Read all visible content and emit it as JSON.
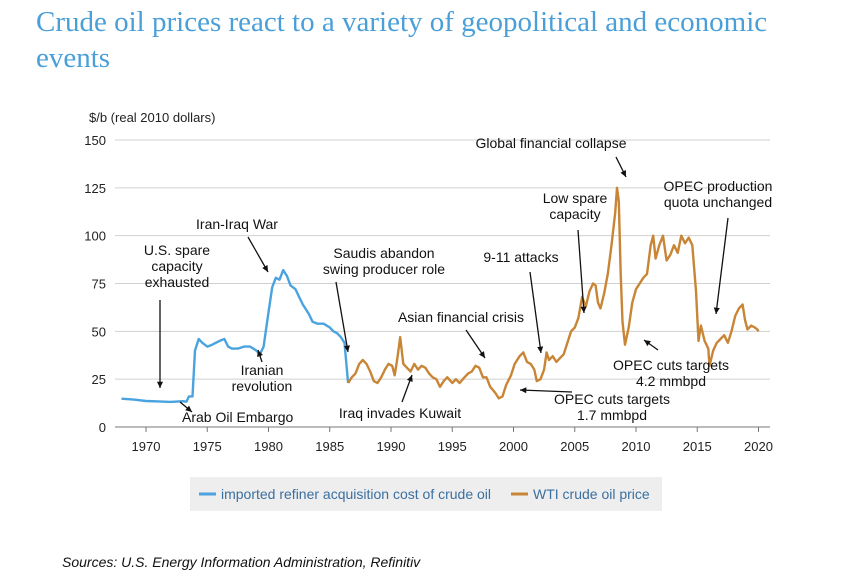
{
  "slide": {
    "title": "Crude oil prices react to a variety of geopolitical and economic events",
    "source": "Sources: U.S. Energy Information Administration, Refinitiv"
  },
  "chart_data": {
    "type": "line",
    "ylabel": "$/b (real 2010 dollars)",
    "xlim": [
      1967.5,
      2021
    ],
    "ylim": [
      0,
      150
    ],
    "x_ticks": [
      "1970",
      "1975",
      "1980",
      "1985",
      "1990",
      "1995",
      "2000",
      "2005",
      "2010",
      "2015",
      "2020"
    ],
    "y_ticks": [
      "0",
      "25",
      "50",
      "75",
      "100",
      "125",
      "150"
    ],
    "grid": true,
    "legend_position": "bottom",
    "colors": {
      "imported": "#4aa3df",
      "wti": "#c98536"
    },
    "series": [
      {
        "name": "imported refiner acquisition cost of crude oil",
        "color": "#4aa3df",
        "points": [
          [
            1968,
            14.8
          ],
          [
            1969,
            14.3
          ],
          [
            1970,
            13.6
          ],
          [
            1971,
            13.4
          ],
          [
            1972,
            13.1
          ],
          [
            1973,
            13.5
          ],
          [
            1973.3,
            13.2
          ],
          [
            1973.5,
            16
          ],
          [
            1973.8,
            16
          ],
          [
            1974,
            40
          ],
          [
            1974.3,
            46
          ],
          [
            1974.6,
            44
          ],
          [
            1975,
            42
          ],
          [
            1975.4,
            43
          ],
          [
            1975.7,
            44
          ],
          [
            1976,
            45
          ],
          [
            1976.4,
            46
          ],
          [
            1976.7,
            42
          ],
          [
            1977,
            41
          ],
          [
            1977.5,
            41
          ],
          [
            1978,
            42
          ],
          [
            1978.5,
            42
          ],
          [
            1979,
            40
          ],
          [
            1979.3,
            38
          ],
          [
            1979.6,
            42
          ],
          [
            1980,
            60
          ],
          [
            1980.3,
            73
          ],
          [
            1980.6,
            78
          ],
          [
            1980.9,
            77
          ],
          [
            1981.2,
            82
          ],
          [
            1981.5,
            79
          ],
          [
            1981.8,
            74
          ],
          [
            1982.2,
            72
          ],
          [
            1982.5,
            68
          ],
          [
            1982.8,
            64
          ],
          [
            1983,
            62
          ],
          [
            1983.3,
            59
          ],
          [
            1983.6,
            55
          ],
          [
            1984,
            54
          ],
          [
            1984.5,
            54
          ],
          [
            1985,
            52
          ],
          [
            1985.3,
            50
          ],
          [
            1985.6,
            49
          ],
          [
            1985.9,
            47
          ],
          [
            1986.2,
            44
          ],
          [
            1986.5,
            23
          ]
        ]
      },
      {
        "name": "WTI crude oil price",
        "color": "#c98536",
        "points": [
          [
            1986.5,
            23
          ],
          [
            1986.8,
            26
          ],
          [
            1987.1,
            28
          ],
          [
            1987.4,
            33
          ],
          [
            1987.7,
            35
          ],
          [
            1988,
            33
          ],
          [
            1988.3,
            29
          ],
          [
            1988.6,
            24
          ],
          [
            1988.9,
            23
          ],
          [
            1989.2,
            26
          ],
          [
            1989.5,
            30
          ],
          [
            1989.8,
            33
          ],
          [
            1990.1,
            32
          ],
          [
            1990.3,
            27
          ],
          [
            1990.5,
            35
          ],
          [
            1990.75,
            47
          ],
          [
            1991,
            33
          ],
          [
            1991.3,
            31
          ],
          [
            1991.6,
            29
          ],
          [
            1991.9,
            33
          ],
          [
            1992.2,
            30
          ],
          [
            1992.5,
            32
          ],
          [
            1992.8,
            31
          ],
          [
            1993.1,
            28
          ],
          [
            1993.4,
            26
          ],
          [
            1993.7,
            25
          ],
          [
            1994,
            21
          ],
          [
            1994.3,
            24
          ],
          [
            1994.6,
            26
          ],
          [
            1995,
            23
          ],
          [
            1995.3,
            25
          ],
          [
            1995.6,
            23
          ],
          [
            1996,
            26
          ],
          [
            1996.3,
            28
          ],
          [
            1996.6,
            29
          ],
          [
            1996.9,
            32
          ],
          [
            1997.2,
            31
          ],
          [
            1997.5,
            26
          ],
          [
            1997.8,
            26
          ],
          [
            1998.1,
            21
          ],
          [
            1998.5,
            18
          ],
          [
            1998.8,
            15
          ],
          [
            1999.1,
            16
          ],
          [
            1999.4,
            22
          ],
          [
            1999.8,
            27
          ],
          [
            2000.1,
            33
          ],
          [
            2000.5,
            37
          ],
          [
            2000.8,
            39
          ],
          [
            2001.1,
            34
          ],
          [
            2001.4,
            33
          ],
          [
            2001.7,
            30
          ],
          [
            2001.9,
            24
          ],
          [
            2002.2,
            25
          ],
          [
            2002.5,
            30
          ],
          [
            2002.7,
            39
          ],
          [
            2002.9,
            35
          ],
          [
            2003.2,
            37
          ],
          [
            2003.5,
            34
          ],
          [
            2003.8,
            36
          ],
          [
            2004.1,
            38
          ],
          [
            2004.4,
            44
          ],
          [
            2004.7,
            50
          ],
          [
            2005,
            52
          ],
          [
            2005.3,
            57
          ],
          [
            2005.6,
            68
          ],
          [
            2005.9,
            63
          ],
          [
            2006.2,
            71
          ],
          [
            2006.5,
            75
          ],
          [
            2006.7,
            74
          ],
          [
            2006.9,
            65
          ],
          [
            2007.1,
            62
          ],
          [
            2007.4,
            70
          ],
          [
            2007.7,
            80
          ],
          [
            2008,
            95
          ],
          [
            2008.3,
            112
          ],
          [
            2008.45,
            125
          ],
          [
            2008.6,
            118
          ],
          [
            2008.75,
            80
          ],
          [
            2008.9,
            55
          ],
          [
            2009.1,
            43
          ],
          [
            2009.4,
            52
          ],
          [
            2009.7,
            65
          ],
          [
            2010,
            72
          ],
          [
            2010.3,
            75
          ],
          [
            2010.6,
            78
          ],
          [
            2010.9,
            80
          ],
          [
            2011.2,
            95
          ],
          [
            2011.4,
            100
          ],
          [
            2011.6,
            88
          ],
          [
            2011.9,
            95
          ],
          [
            2012.2,
            100
          ],
          [
            2012.5,
            87
          ],
          [
            2012.8,
            90
          ],
          [
            2013.1,
            95
          ],
          [
            2013.4,
            91
          ],
          [
            2013.7,
            100
          ],
          [
            2014,
            96
          ],
          [
            2014.3,
            99
          ],
          [
            2014.6,
            95
          ],
          [
            2014.9,
            71
          ],
          [
            2015.1,
            45
          ],
          [
            2015.3,
            53
          ],
          [
            2015.6,
            45
          ],
          [
            2015.9,
            41
          ],
          [
            2016,
            32
          ],
          [
            2016.3,
            40
          ],
          [
            2016.6,
            44
          ],
          [
            2016.9,
            46
          ],
          [
            2017.2,
            48
          ],
          [
            2017.5,
            44
          ],
          [
            2017.8,
            50
          ],
          [
            2018.1,
            58
          ],
          [
            2018.4,
            62
          ],
          [
            2018.7,
            64
          ],
          [
            2018.9,
            56
          ],
          [
            2019.1,
            51
          ],
          [
            2019.4,
            53
          ],
          [
            2019.7,
            52
          ],
          [
            2019.9,
            51
          ],
          [
            2020,
            50
          ]
        ]
      }
    ],
    "annotations": [
      {
        "lines": [
          "Arab Oil Embargo"
        ]
      },
      {
        "lines": [
          "U.S. spare",
          "capacity",
          "exhausted"
        ]
      },
      {
        "lines": [
          "Iran-Iraq War"
        ]
      },
      {
        "lines": [
          "Iranian",
          "revolution"
        ]
      },
      {
        "lines": [
          "Saudis abandon",
          "swing producer role"
        ]
      },
      {
        "lines": [
          "Iraq invades Kuwait"
        ]
      },
      {
        "lines": [
          "Asian financial crisis"
        ]
      },
      {
        "lines": [
          "9-11 attacks"
        ]
      },
      {
        "lines": [
          "OPEC cuts targets",
          "1.7 mmbpd"
        ]
      },
      {
        "lines": [
          "Low spare",
          "capacity"
        ]
      },
      {
        "lines": [
          "Global financial collapse"
        ]
      },
      {
        "lines": [
          "OPEC cuts targets",
          "4.2 mmbpd"
        ]
      },
      {
        "lines": [
          "OPEC production",
          "quota unchanged"
        ]
      }
    ]
  }
}
